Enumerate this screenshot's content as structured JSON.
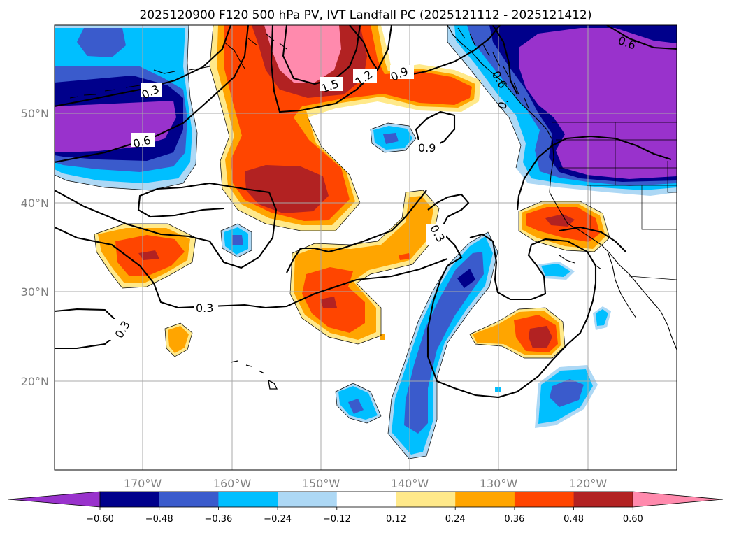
{
  "title": "2025120900 F120 500 hPa PV, IVT Landfall PC (2025121112 - 2025121412)",
  "map": {
    "lon_ticks": [
      "170°W",
      "160°W",
      "150°W",
      "140°W",
      "130°W",
      "120°W"
    ],
    "lat_ticks": [
      "50°N",
      "40°N",
      "30°N",
      "20°N"
    ],
    "contour_labels": [
      "0.3",
      "0.3",
      "0.3",
      "0.6",
      "0.6",
      "0.9",
      "0.9",
      "1.2",
      "1.5",
      "0.3",
      "0.6",
      "0."
    ],
    "gridlines": true
  },
  "colorbar": {
    "ticks": [
      "−0.60",
      "−0.48",
      "−0.36",
      "−0.24",
      "−0.12",
      "0.12",
      "0.24",
      "0.36",
      "0.48",
      "0.60"
    ],
    "colors": [
      "#9932cc",
      "#00008b",
      "#3a5bcc",
      "#00bfff",
      "#add8f5",
      "#ffffff",
      "#ffe98a",
      "#ffa500",
      "#ff4500",
      "#b22222",
      "#ff8aad"
    ]
  }
}
